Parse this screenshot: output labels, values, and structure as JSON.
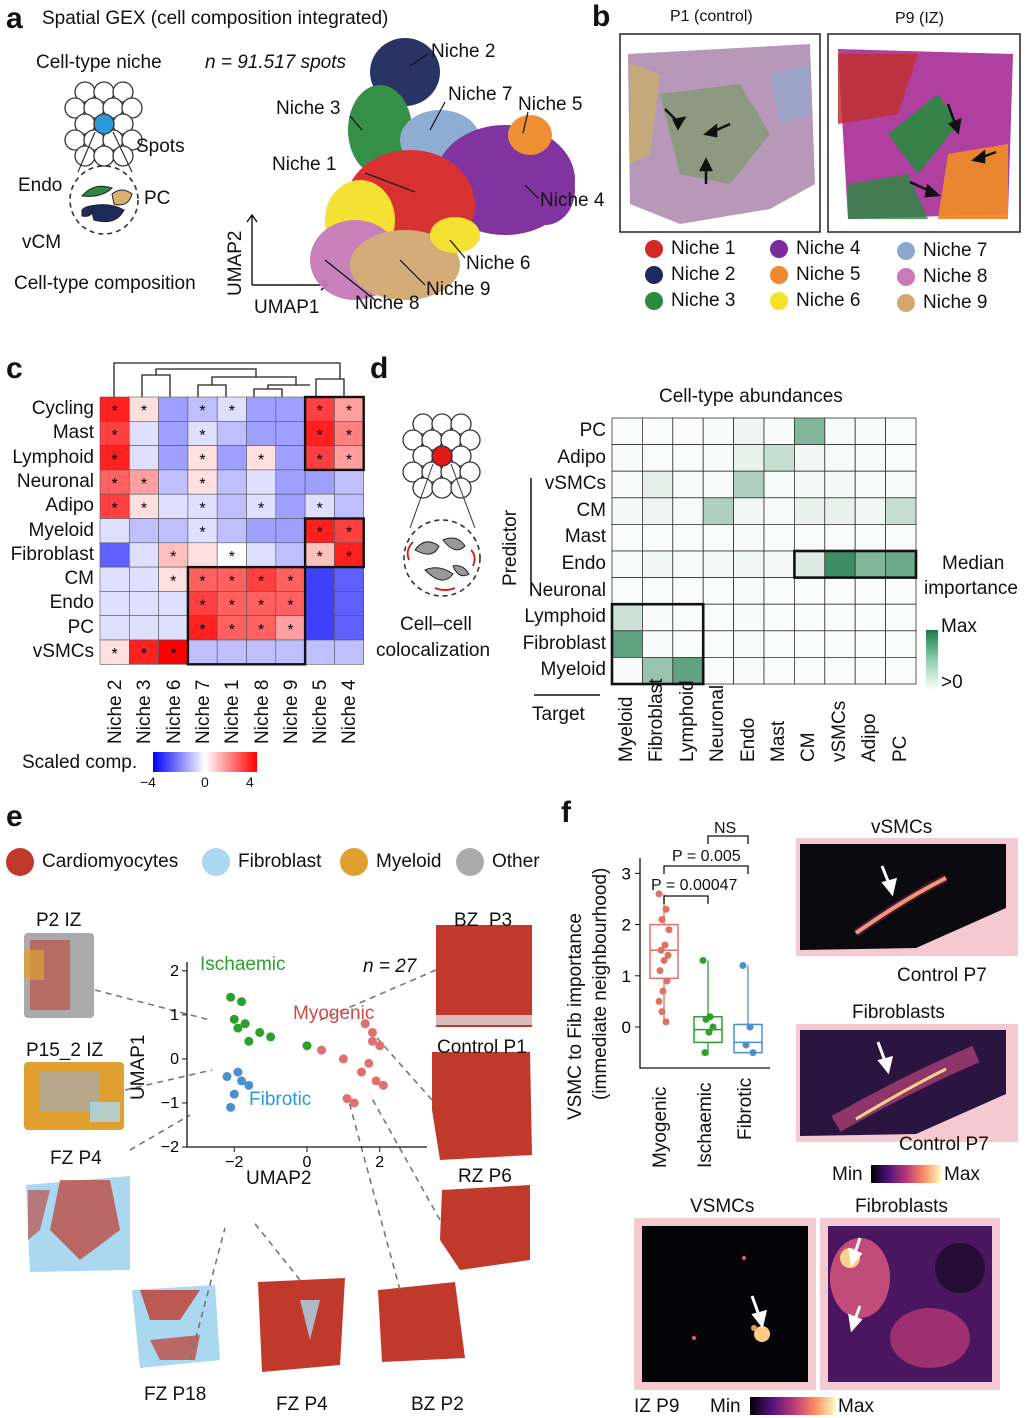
{
  "panel_a": {
    "label": "a",
    "title": "Spatial GEX (cell composition integrated)",
    "niche_label": "Cell-type niche",
    "n_label": "n = 91.517 spots",
    "spots_label": "Spots",
    "endo_label": "Endo",
    "pc_label": "PC",
    "vcm_label": "vCM",
    "composition_label": "Cell-type composition",
    "xaxis": "UMAP1",
    "yaxis": "UMAP2",
    "niche_labels": [
      "Niche 1",
      "Niche 2",
      "Niche 3",
      "Niche 4",
      "Niche 5",
      "Niche 6",
      "Niche 7",
      "Niche 8",
      "Niche 9"
    ]
  },
  "panel_b": {
    "label": "b",
    "left_title": "P1 (control)",
    "right_title": "P9 (IZ)",
    "legend": [
      {
        "name": "Niche 1",
        "color": "#d62728"
      },
      {
        "name": "Niche 2",
        "color": "#1f2a5c"
      },
      {
        "name": "Niche 3",
        "color": "#2a8a3e"
      },
      {
        "name": "Niche 4",
        "color": "#7b2a9a"
      },
      {
        "name": "Niche 5",
        "color": "#ee8a2a"
      },
      {
        "name": "Niche 6",
        "color": "#f5e02a"
      },
      {
        "name": "Niche 7",
        "color": "#8aa8d0"
      },
      {
        "name": "Niche 8",
        "color": "#c77bb8"
      },
      {
        "name": "Niche 9",
        "color": "#d2a870"
      }
    ]
  },
  "panel_c": {
    "label": "c",
    "rows": [
      "Cycling",
      "Mast",
      "Lymphoid",
      "Neuronal",
      "Adipo",
      "Myeloid",
      "Fibroblast",
      "CM",
      "Endo",
      "PC",
      "vSMCs"
    ],
    "cols": [
      "Niche 2",
      "Niche 3",
      "Niche 6",
      "Niche 7",
      "Niche 1",
      "Niche 8",
      "Niche 9",
      "Niche 5",
      "Niche 4"
    ],
    "legend_title": "Scaled comp.",
    "legend_ticks": [
      "−4",
      "0",
      "4"
    ],
    "star": "*"
  },
  "panel_d": {
    "label": "d",
    "title": "Cell-type abundances",
    "rows": [
      "PC",
      "Adipo",
      "vSMCs",
      "CM",
      "Mast",
      "Endo",
      "Neuronal",
      "Lymphoid",
      "Fibroblast",
      "Myeloid"
    ],
    "cols": [
      "Myeloid",
      "Fibroblast",
      "Lymphoid",
      "Neuronal",
      "Endo",
      "Mast",
      "CM",
      "vSMCs",
      "Adipo",
      "PC"
    ],
    "predictor_label": "Predictor",
    "target_label": "Target",
    "colocalization_label": "Cell–cell\ncolocalization",
    "colocalization_line1": "Cell–cell",
    "colocalization_line2": "colocalization",
    "median_label_1": "Median",
    "median_label_2": "importance",
    "max_label": "Max",
    "min_label": ">0"
  },
  "panel_e": {
    "label": "e",
    "legend": [
      {
        "name": "Cardiomyocytes",
        "color": "#c0392b"
      },
      {
        "name": "Fibroblast",
        "color": "#a9d8f0"
      },
      {
        "name": "Myeloid",
        "color": "#e0a030"
      },
      {
        "name": "Other",
        "color": "#aaaaaa"
      }
    ],
    "xaxis": "UMAP2",
    "yaxis": "UMAP1",
    "n_label": "n = 27",
    "group_ischaemic": "Ischaemic",
    "group_myogenic": "Myogenic",
    "group_fibrotic": "Fibrotic",
    "xticks": [
      "−2",
      "0",
      "2"
    ],
    "yticks": [
      "2",
      "1",
      "0",
      "−1",
      "−2"
    ],
    "samples": [
      "P2 IZ",
      "P15_2 IZ",
      "FZ P4",
      "FZ P18",
      "FZ P4",
      "BZ P2",
      "RZ P6",
      "Control P1",
      "BZ  P3"
    ]
  },
  "panel_f": {
    "label": "f",
    "ylabel_1": "VSMC to Fib importance",
    "ylabel_2": "(immediate neighbourhood)",
    "yticks": [
      "3",
      "2",
      "1",
      "0"
    ],
    "groups": [
      "Myogenic",
      "Ischaemic",
      "Fibrotic"
    ],
    "ns_label": "NS",
    "p1": "P = 0.005",
    "p2": "P = 0.00047",
    "map_titles": [
      "vSMCs",
      "Fibroblasts",
      "VSMCs",
      "Fibroblasts"
    ],
    "control_label_1": "Control P7",
    "control_label_2": "Control P7",
    "iz_label": "IZ P9",
    "min_label": "Min",
    "max_label": "Max"
  },
  "chart_data": [
    {
      "type": "heatmap",
      "title": "",
      "rows": [
        "Cycling",
        "Mast",
        "Lymphoid",
        "Neuronal",
        "Adipo",
        "Myeloid",
        "Fibroblast",
        "CM",
        "Endo",
        "PC",
        "vSMCs"
      ],
      "cols": [
        "Niche 2",
        "Niche 3",
        "Niche 6",
        "Niche 7",
        "Niche 1",
        "Niche 8",
        "Niche 9",
        "Niche 5",
        "Niche 4"
      ],
      "values": [
        [
          3.5,
          0.5,
          -1.5,
          -1.0,
          -0.5,
          -1.5,
          -1.5,
          3.0,
          1.5
        ],
        [
          3.0,
          -0.5,
          -1.5,
          -0.5,
          -1.0,
          -1.5,
          -1.5,
          3.5,
          2.0
        ],
        [
          3.5,
          -0.5,
          -1.5,
          0.5,
          -1.5,
          0.5,
          -1.5,
          3.0,
          1.5
        ],
        [
          2.5,
          1.5,
          -1.0,
          0.5,
          -1.0,
          -0.5,
          -1.5,
          -1.5,
          -1.0
        ],
        [
          3.0,
          0.5,
          -0.5,
          -0.5,
          -1.0,
          -0.5,
          -1.5,
          -0.5,
          -1.0
        ],
        [
          -0.5,
          -1.0,
          -1.0,
          -0.5,
          -1.0,
          -1.5,
          -1.5,
          3.5,
          3.0
        ],
        [
          -2.5,
          -0.5,
          1.0,
          0.5,
          0.0,
          -0.5,
          -1.0,
          1.0,
          3.5
        ],
        [
          -0.5,
          -0.5,
          0.5,
          2.5,
          2.5,
          3.0,
          2.5,
          -3.0,
          -2.5
        ],
        [
          -0.5,
          -0.5,
          -0.5,
          3.0,
          2.5,
          2.5,
          2.5,
          -3.0,
          -2.5
        ],
        [
          -0.5,
          -0.5,
          -0.5,
          3.5,
          2.5,
          2.5,
          1.5,
          -3.0,
          -2.5
        ],
        [
          0.5,
          3.5,
          4.0,
          -1.0,
          -1.0,
          -1.0,
          -1.0,
          -1.0,
          -1.0
        ]
      ],
      "stars": [
        [
          1,
          1,
          0,
          1,
          1,
          0,
          0,
          1,
          1
        ],
        [
          1,
          0,
          0,
          1,
          0,
          0,
          0,
          1,
          1
        ],
        [
          1,
          0,
          0,
          1,
          0,
          1,
          0,
          1,
          1
        ],
        [
          1,
          1,
          0,
          1,
          0,
          0,
          0,
          0,
          0
        ],
        [
          1,
          1,
          0,
          1,
          0,
          1,
          0,
          1,
          0
        ],
        [
          0,
          0,
          0,
          1,
          0,
          0,
          0,
          1,
          1
        ],
        [
          0,
          0,
          1,
          0,
          1,
          0,
          0,
          1,
          1
        ],
        [
          0,
          0,
          1,
          1,
          1,
          1,
          1,
          0,
          0
        ],
        [
          0,
          0,
          0,
          1,
          1,
          1,
          1,
          0,
          0
        ],
        [
          0,
          0,
          0,
          1,
          1,
          1,
          1,
          0,
          0
        ],
        [
          1,
          1,
          1,
          0,
          0,
          0,
          0,
          0,
          0
        ]
      ],
      "ylim": [
        -4,
        4
      ]
    },
    {
      "type": "heatmap",
      "title": "Cell-type abundances",
      "rows": [
        "PC",
        "Adipo",
        "vSMCs",
        "CM",
        "Mast",
        "Endo",
        "Neuronal",
        "Lymphoid",
        "Fibroblast",
        "Myeloid"
      ],
      "cols": [
        "Myeloid",
        "Fibroblast",
        "Lymphoid",
        "Neuronal",
        "Endo",
        "Mast",
        "CM",
        "vSMCs",
        "Adipo",
        "PC"
      ],
      "values": [
        [
          0.02,
          0.02,
          0.02,
          0.03,
          0.08,
          0.03,
          0.55,
          0.04,
          0.03,
          0.02
        ],
        [
          0.03,
          0.02,
          0.02,
          0.03,
          0.1,
          0.25,
          0.06,
          0.04,
          0.03,
          0.02
        ],
        [
          0.03,
          0.12,
          0.03,
          0.03,
          0.35,
          0.04,
          0.05,
          0.05,
          0.04,
          0.04
        ],
        [
          0.05,
          0.08,
          0.04,
          0.35,
          0.06,
          0.04,
          0.1,
          0.1,
          0.06,
          0.25
        ],
        [
          0.02,
          0.02,
          0.02,
          0.02,
          0.03,
          0.02,
          0.02,
          0.02,
          0.02,
          0.02
        ],
        [
          0.04,
          0.06,
          0.03,
          0.05,
          0.06,
          0.05,
          0.15,
          0.85,
          0.55,
          0.65
        ],
        [
          0.02,
          0.02,
          0.02,
          0.02,
          0.03,
          0.02,
          0.02,
          0.02,
          0.02,
          0.02
        ],
        [
          0.22,
          0.03,
          0.02,
          0.02,
          0.03,
          0.02,
          0.02,
          0.02,
          0.02,
          0.02
        ],
        [
          0.7,
          0.03,
          0.02,
          0.02,
          0.03,
          0.02,
          0.02,
          0.02,
          0.02,
          0.02
        ],
        [
          0.03,
          0.45,
          0.7,
          0.02,
          0.03,
          0.02,
          0.02,
          0.02,
          0.02,
          0.02
        ]
      ]
    },
    {
      "type": "scatter",
      "title": "",
      "xlabel": "UMAP2",
      "ylabel": "UMAP1",
      "xlim": [
        -3.3,
        3.3
      ],
      "ylim": [
        -2,
        2.2
      ],
      "series": [
        {
          "name": "Ischaemic",
          "color": "#2ca02c",
          "points": [
            [
              -2.1,
              1.4
            ],
            [
              -1.8,
              1.3
            ],
            [
              -2.0,
              0.9
            ],
            [
              -1.7,
              0.8
            ],
            [
              -1.3,
              0.6
            ],
            [
              -1.0,
              0.5
            ],
            [
              -1.6,
              0.4
            ],
            [
              -1.9,
              0.7
            ],
            [
              0.0,
              0.3
            ]
          ]
        },
        {
          "name": "Myogenic",
          "color": "#e07070",
          "points": [
            [
              0.4,
              0.2
            ],
            [
              1.0,
              0.0
            ],
            [
              1.6,
              0.8
            ],
            [
              1.8,
              0.4
            ],
            [
              2.0,
              0.3
            ],
            [
              1.7,
              -0.1
            ],
            [
              1.5,
              -0.3
            ],
            [
              1.9,
              -0.5
            ],
            [
              2.1,
              -0.6
            ],
            [
              1.1,
              -0.9
            ],
            [
              1.3,
              -1.0
            ],
            [
              1.8,
              0.6
            ]
          ]
        },
        {
          "name": "Fibrotic",
          "color": "#4a90d0",
          "points": [
            [
              -2.2,
              -0.4
            ],
            [
              -1.9,
              -0.3
            ],
            [
              -1.8,
              -0.5
            ],
            [
              -2.0,
              -0.8
            ],
            [
              -1.6,
              -0.6
            ],
            [
              -2.1,
              -1.1
            ]
          ]
        }
      ]
    },
    {
      "type": "box",
      "title": "",
      "ylabel": "VSMC to Fib importance (immediate neighbourhood)",
      "categories": [
        "Myogenic",
        "Ischaemic",
        "Fibrotic"
      ],
      "ylim": [
        -0.8,
        3.3
      ],
      "boxes": [
        {
          "name": "Myogenic",
          "q1": 0.95,
          "median": 1.5,
          "q3": 2.0,
          "min": 0.05,
          "max": 2.6,
          "points": [
            2.6,
            2.3,
            2.1,
            1.9,
            1.6,
            1.5,
            1.4,
            1.3,
            1.1,
            0.9,
            0.7,
            0.5,
            0.1,
            0.3
          ]
        },
        {
          "name": "Ischaemic",
          "q1": -0.3,
          "median": -0.05,
          "q3": 0.2,
          "min": -0.55,
          "max": 1.3,
          "points": [
            1.3,
            0.2,
            0.15,
            0.0,
            -0.1,
            -0.5
          ]
        },
        {
          "name": "Fibrotic",
          "q1": -0.5,
          "median": -0.3,
          "q3": 0.05,
          "min": -0.5,
          "max": 1.2,
          "points": [
            1.2,
            0.0,
            -0.35,
            -0.5
          ]
        }
      ]
    }
  ]
}
